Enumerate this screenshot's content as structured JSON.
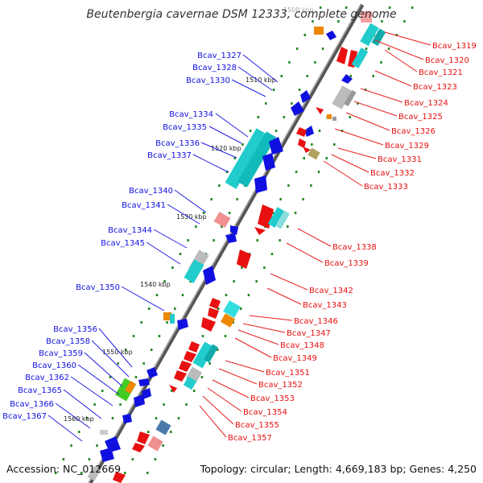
{
  "title": "Beutenbergia cavernae DSM 12333, complete genome",
  "accession_text": "Accession: NC_012669",
  "topology_text": "Topology: circular; Length: 4,669,183 bp; Genes: 4,250",
  "colors": {
    "forward": "#1010e0",
    "reverse": "#e81010",
    "cyan": "#22cccc",
    "gray": "#bbbbbb",
    "tick": "#228822",
    "label_line_forward": "#2020e0",
    "label_line_reverse": "#e82020"
  },
  "scale_labels": [
    "1500 kbp",
    "1510 kbp",
    "1520 kbp",
    "1530 kbp",
    "1540 kbp",
    "1550 kbp",
    "1560 kbp"
  ],
  "left_labels": [
    "Bcav_1327",
    "Bcav_1328",
    "Bcav_1330",
    "Bcav_1334",
    "Bcav_1335",
    "Bcav_1336",
    "Bcav_1337",
    "Bcav_1340",
    "Bcav_1341",
    "Bcav_1344",
    "Bcav_1345",
    "Bcav_1350",
    "Bcav_1356",
    "Bcav_1358",
    "Bcav_1359",
    "Bcav_1360",
    "Bcav_1362",
    "Bcav_1365",
    "Bcav_1366",
    "Bcav_1367"
  ],
  "right_labels": [
    "Bcav_1319",
    "Bcav_1320",
    "Bcav_1321",
    "Bcav_1323",
    "Bcav_1324",
    "Bcav_1325",
    "Bcav_1326",
    "Bcav_1329",
    "Bcav_1331",
    "Bcav_1332",
    "Bcav_1333",
    "Bcav_1338",
    "Bcav_1339",
    "Bcav_1342",
    "Bcav_1343",
    "Bcav_1346",
    "Bcav_1347",
    "Bcav_1348",
    "Bcav_1349",
    "Bcav_1351",
    "Bcav_1352",
    "Bcav_1353",
    "Bcav_1354",
    "Bcav_1355",
    "Bcav_1357"
  ]
}
